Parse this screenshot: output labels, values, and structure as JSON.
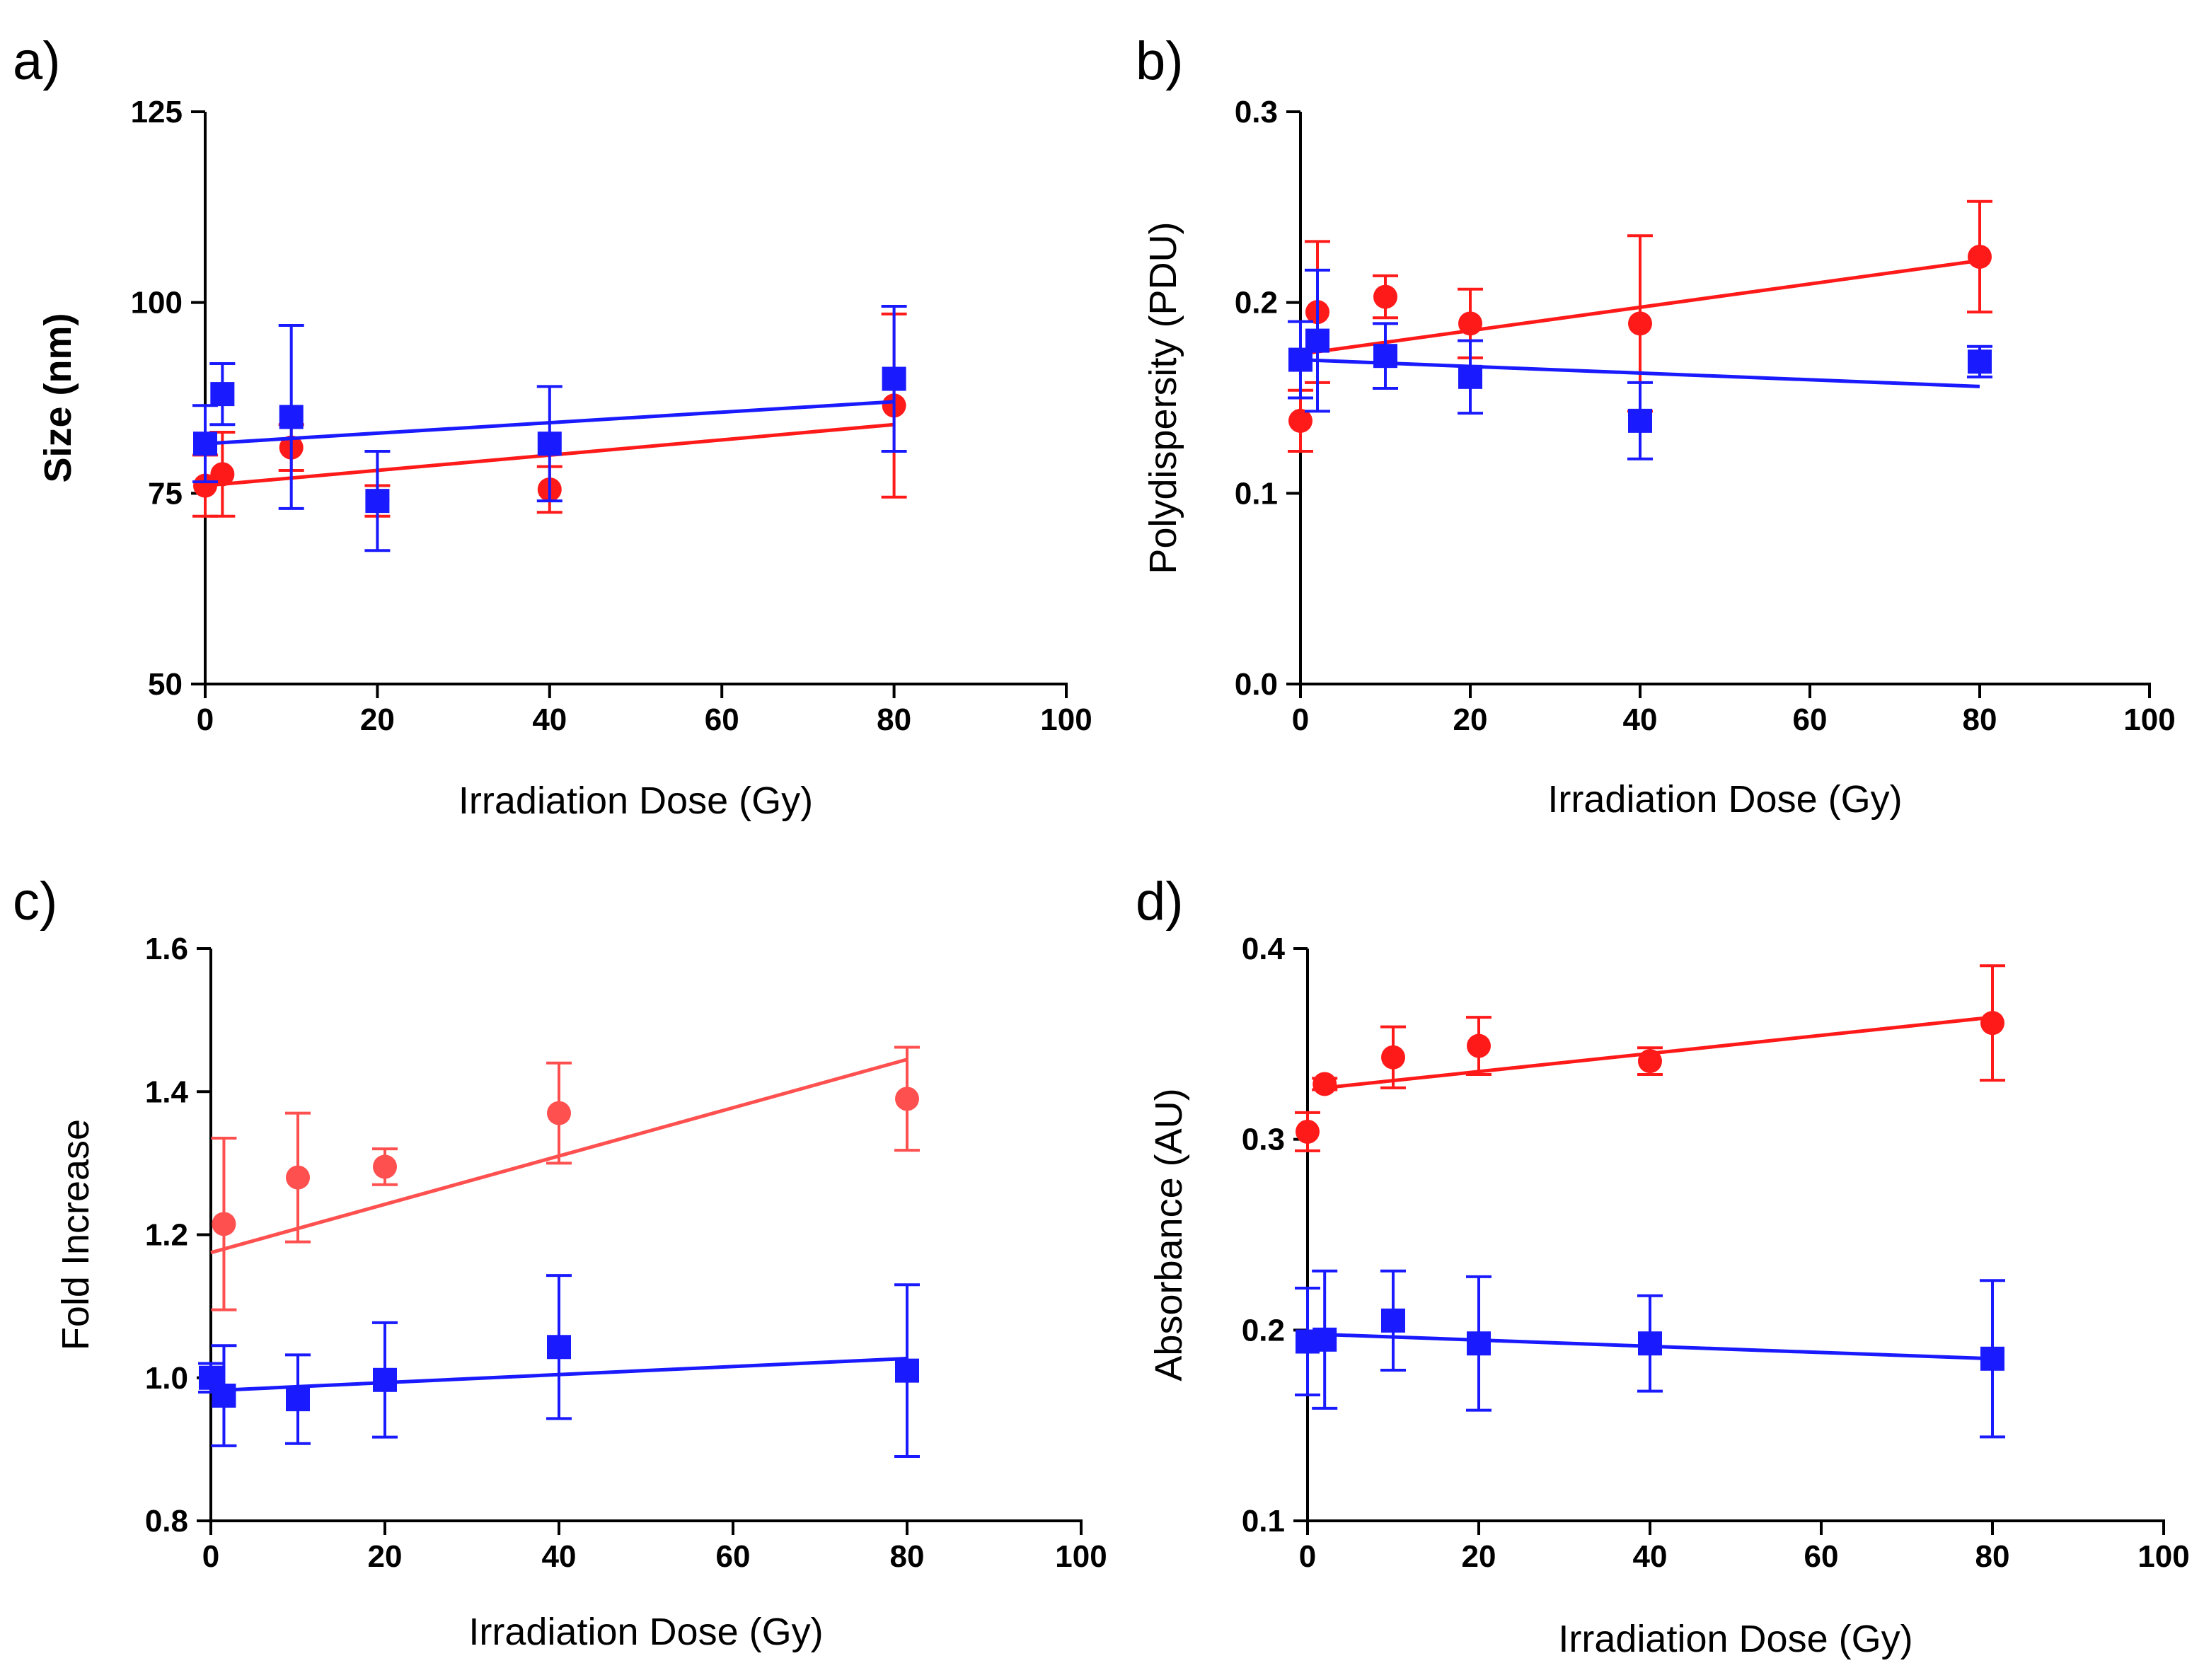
{
  "colors": {
    "red": "#ff1a1a",
    "blue": "#1a1aff",
    "axis": "#000000"
  },
  "chart_data": [
    {
      "panel": "a)",
      "type": "scatter",
      "title": "",
      "xlabel": "Irradiation Dose (Gy)",
      "ylabel": "Size (nm)",
      "xlim": [
        0,
        100
      ],
      "ylim": [
        50,
        125
      ],
      "xticks": [
        0,
        20,
        40,
        60,
        80,
        100
      ],
      "yticks": [
        50,
        75,
        100,
        125
      ],
      "ytick_labels": [
        "50",
        "75",
        "100",
        "125"
      ],
      "series": [
        {
          "name": "red",
          "color": "#ff1a1a",
          "marker": "circle",
          "x": [
            0,
            2,
            10,
            20,
            40,
            80
          ],
          "y": [
            76,
            77.5,
            81,
            74,
            75.5,
            86.5
          ],
          "err": [
            4,
            5.5,
            3,
            2,
            3,
            12
          ],
          "fit": [
            [
              0,
              76
            ],
            [
              80,
              84
            ]
          ]
        },
        {
          "name": "blue",
          "color": "#1a1aff",
          "marker": "square",
          "x": [
            0,
            2,
            10,
            20,
            40,
            80
          ],
          "y": [
            81.5,
            88,
            85,
            74,
            81.5,
            90
          ],
          "err": [
            5,
            4,
            12,
            6.5,
            7.5,
            9.5
          ],
          "fit": [
            [
              0,
              81.5
            ],
            [
              80,
              87
            ]
          ]
        }
      ]
    },
    {
      "panel": "b)",
      "type": "scatter",
      "title": "",
      "xlabel": "Irradiation Dose (Gy)",
      "ylabel": "Polydispersity (PDU)",
      "xlim": [
        0,
        100
      ],
      "ylim": [
        0,
        0.3
      ],
      "xticks": [
        0,
        20,
        40,
        60,
        80,
        100
      ],
      "yticks": [
        0,
        0.1,
        0.2,
        0.3
      ],
      "ytick_labels": [
        "0.0",
        "0.1",
        "0.2",
        "0.3"
      ],
      "series": [
        {
          "name": "red",
          "color": "#ff1a1a",
          "marker": "circle",
          "x": [
            0,
            2,
            10,
            20,
            40,
            80
          ],
          "y": [
            0.138,
            0.195,
            0.203,
            0.189,
            0.189,
            0.224
          ],
          "err": [
            0.016,
            0.037,
            0.011,
            0.018,
            0.046,
            0.029
          ],
          "fit": [
            [
              0,
              0.173
            ],
            [
              80,
              0.222
            ]
          ]
        },
        {
          "name": "blue",
          "color": "#1a1aff",
          "marker": "square",
          "x": [
            0,
            2,
            10,
            20,
            40,
            80
          ],
          "y": [
            0.17,
            0.18,
            0.172,
            0.161,
            0.138,
            0.169
          ],
          "err": [
            0.02,
            0.037,
            0.017,
            0.019,
            0.02,
            0.008
          ],
          "fit": [
            [
              0,
              0.17
            ],
            [
              80,
              0.156
            ]
          ]
        }
      ]
    },
    {
      "panel": "c)",
      "type": "scatter",
      "title": "",
      "xlabel": "Irradiation Dose (Gy)",
      "ylabel": "Fold Increase",
      "xlim": [
        0,
        100
      ],
      "ylim": [
        0.8,
        1.6
      ],
      "xticks": [
        0,
        20,
        40,
        60,
        80,
        100
      ],
      "yticks": [
        0.8,
        1.0,
        1.2,
        1.4,
        1.6
      ],
      "ytick_labels": [
        "0.8",
        "1.0",
        "1.2",
        "1.4",
        "1.6"
      ],
      "series": [
        {
          "name": "red",
          "color": "#ff5050",
          "marker": "circle",
          "x": [
            1.5,
            10,
            20,
            40,
            80
          ],
          "y": [
            1.215,
            1.28,
            1.295,
            1.37,
            1.39
          ],
          "err": [
            0.12,
            0.09,
            0.025,
            0.07,
            0.072
          ],
          "fit": [
            [
              0,
              1.175
            ],
            [
              80,
              1.445
            ]
          ]
        },
        {
          "name": "blue",
          "color": "#1a1aff",
          "marker": "square",
          "x": [
            0,
            1.5,
            10,
            20,
            40,
            80
          ],
          "y": [
            1.0,
            0.975,
            0.97,
            0.997,
            1.043,
            1.01
          ],
          "err": [
            0.02,
            0.07,
            0.062,
            0.08,
            0.1,
            0.12
          ],
          "fit": [
            [
              0,
              0.982
            ],
            [
              80,
              1.027
            ]
          ]
        }
      ]
    },
    {
      "panel": "d)",
      "type": "scatter",
      "title": "",
      "xlabel": "Irradiation Dose (Gy)",
      "ylabel": "Absorbance (AU)",
      "xlim": [
        0,
        100
      ],
      "ylim": [
        0.1,
        0.4
      ],
      "xticks": [
        0,
        20,
        40,
        60,
        80,
        100
      ],
      "yticks": [
        0.1,
        0.2,
        0.3,
        0.4
      ],
      "ytick_labels": [
        "0.1",
        "0.2",
        "0.3",
        "0.4"
      ],
      "series": [
        {
          "name": "red",
          "color": "#ff1a1a",
          "marker": "circle",
          "x": [
            0,
            2,
            10,
            20,
            40,
            80
          ],
          "y": [
            0.304,
            0.329,
            0.343,
            0.349,
            0.341,
            0.361
          ],
          "err": [
            0.01,
            0.003,
            0.016,
            0.015,
            0.007,
            0.03
          ],
          "fit": [
            [
              2,
              0.327
            ],
            [
              80,
              0.364
            ]
          ]
        },
        {
          "name": "blue",
          "color": "#1a1aff",
          "marker": "square",
          "x": [
            0,
            2,
            10,
            20,
            40,
            80
          ],
          "y": [
            0.194,
            0.195,
            0.205,
            0.193,
            0.193,
            0.185
          ],
          "err": [
            0.028,
            0.036,
            0.026,
            0.035,
            0.025,
            0.041
          ],
          "fit": [
            [
              0,
              0.198
            ],
            [
              80,
              0.185
            ]
          ]
        }
      ]
    }
  ]
}
